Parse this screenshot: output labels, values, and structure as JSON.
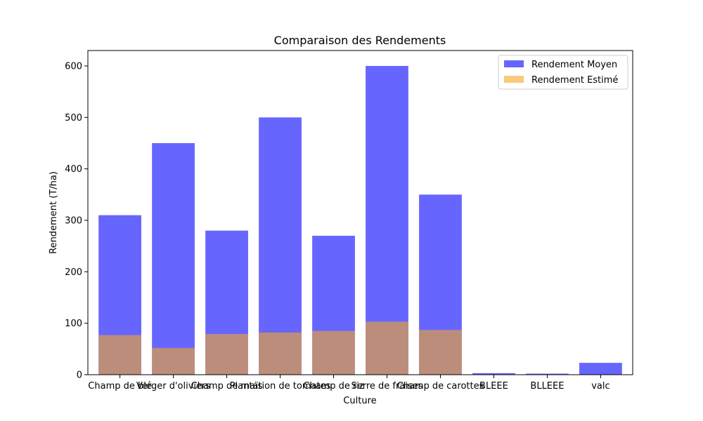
{
  "chart_data": {
    "type": "bar",
    "title": "Comparaison des Rendements",
    "xlabel": "Culture",
    "ylabel": "Rendement (T/ha)",
    "categories": [
      "Champ de blé",
      "Verger d'oliviers",
      "Champ de maïs",
      "Plantation de tomates",
      "Champ de riz",
      "Serre de fraises",
      "Champ de carottes",
      "BLEEE",
      "BLLEEE",
      "valc"
    ],
    "series": [
      {
        "name": "Rendement Moyen",
        "color": "#6666ff",
        "values": [
          310,
          450,
          280,
          500,
          270,
          600,
          350,
          3,
          2,
          23
        ]
      },
      {
        "name": "Rendement Estimé",
        "color": "#f5a623",
        "opacity": 0.6,
        "values": [
          77,
          52,
          79,
          82,
          85,
          103,
          87,
          0,
          0,
          0
        ]
      }
    ],
    "ylim": [
      0,
      630
    ],
    "yticks": [
      0,
      100,
      200,
      300,
      400,
      500,
      600
    ],
    "legend": "top-right",
    "grid": false
  }
}
